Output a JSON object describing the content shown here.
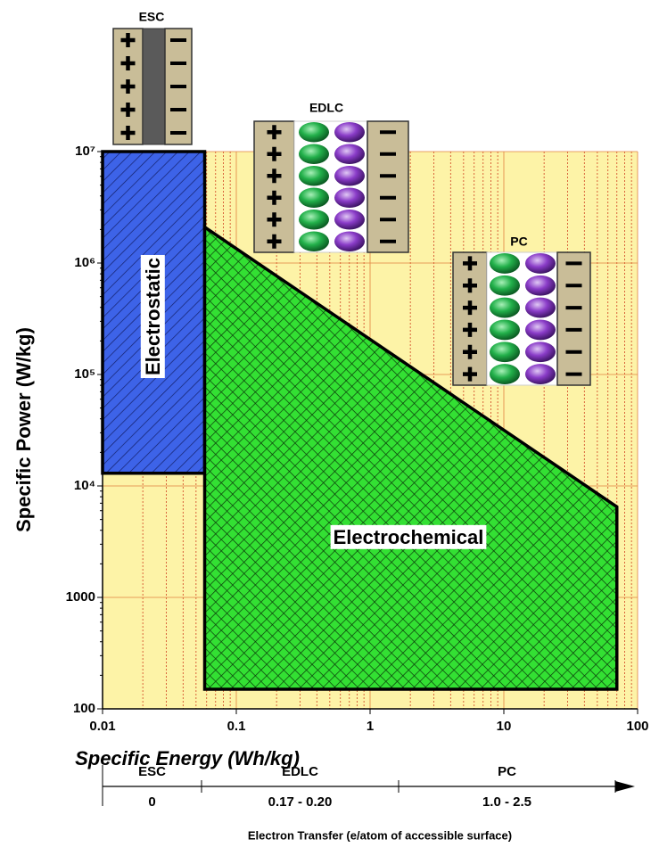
{
  "chart_data": {
    "type": "region",
    "x_label": "Specific Energy (Wh/kg)",
    "y_label": "Specific Power (W/kg)",
    "xscale": "log",
    "yscale": "log",
    "xlim": [
      0.01,
      100
    ],
    "ylim": [
      100,
      10000000
    ],
    "xticks": [
      0.01,
      0.1,
      1,
      10,
      100
    ],
    "yticks": [
      100,
      1000,
      {
        "value": 10000,
        "label": "10⁴"
      },
      {
        "value": 100000,
        "label": "10⁵"
      },
      {
        "value": 1000000,
        "label": "10⁶"
      },
      {
        "value": 10000000,
        "label": "10⁷"
      }
    ],
    "grid": true,
    "minor_grid": true,
    "background": "#fdf3a7",
    "series": [
      {
        "name": "Electrostatic",
        "color": "#3d63e8",
        "x": [
          0.01,
          0.058,
          0.058,
          0.01
        ],
        "y": [
          10000000,
          10000000,
          13000,
          13000
        ]
      },
      {
        "name": "Electrochemical",
        "color": "#33e033",
        "x": [
          0.058,
          70,
          70,
          0.058
        ],
        "y": [
          2100000,
          6500,
          150,
          150
        ]
      }
    ]
  },
  "illustrations": {
    "labels": [
      "ESC",
      "EDLC",
      "PC"
    ]
  },
  "electron_transfer": {
    "title": "Electron Transfer (e/atom of accessible surface)",
    "categories": [
      "ESC",
      "EDLC",
      "PC"
    ],
    "values": [
      "0",
      "0.17 - 0.20",
      "1.0 - 2.5"
    ]
  }
}
